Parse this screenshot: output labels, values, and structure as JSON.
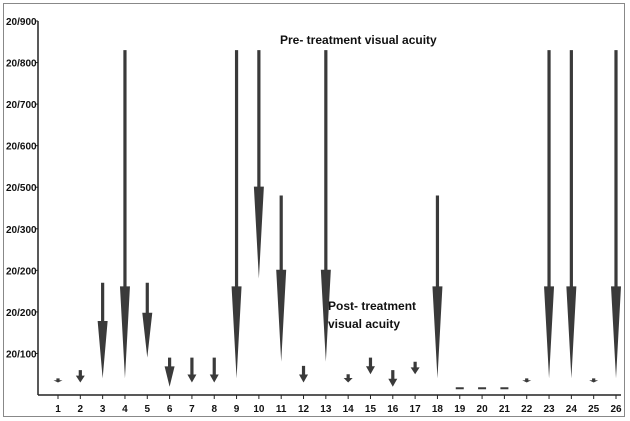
{
  "chart_data": {
    "type": "arrow-range",
    "title": "",
    "xlabel": "",
    "ylabel": "",
    "categories": [
      "1",
      "2",
      "3",
      "4",
      "5",
      "6",
      "7",
      "8",
      "9",
      "10",
      "11",
      "12",
      "13",
      "14",
      "15",
      "16",
      "17",
      "18",
      "19",
      "20",
      "21",
      "22",
      "23",
      "24",
      "25",
      "26"
    ],
    "y_tick_labels": [
      "20/100",
      "20/200",
      "20/200",
      "20/300",
      "20/500",
      "20/600",
      "20/700",
      "20/800",
      "20/900"
    ],
    "y_tick_positions": [
      1,
      2,
      3,
      4,
      5,
      6,
      7,
      8,
      9
    ],
    "ylim": [
      0,
      9
    ],
    "series": [
      {
        "name": "Pre- treatment visual acuity",
        "values": [
          0.4,
          0.6,
          2.7,
          8.3,
          2.7,
          0.9,
          0.9,
          0.9,
          8.3,
          8.3,
          4.8,
          0.7,
          8.3,
          0.5,
          0.9,
          0.6,
          0.8,
          4.8,
          0.2,
          0.2,
          0.2,
          0.4,
          8.3,
          8.3,
          0.4,
          8.3
        ]
      },
      {
        "name": "Post- treatment visual acuity",
        "values": [
          0.3,
          0.3,
          0.4,
          0.4,
          0.9,
          0.2,
          0.3,
          0.3,
          0.4,
          2.8,
          0.8,
          0.3,
          0.8,
          0.3,
          0.5,
          0.2,
          0.5,
          0.4,
          0.15,
          0.15,
          0.15,
          0.3,
          0.4,
          0.4,
          0.3,
          0.4
        ]
      }
    ],
    "annotations": {
      "pre": "Pre- treatment visual acuity",
      "post_line1": "Post- treatment",
      "post_line2": "visual acuity"
    },
    "colors": {
      "arrow": "#3a3a3a",
      "axis": "#222222"
    }
  }
}
